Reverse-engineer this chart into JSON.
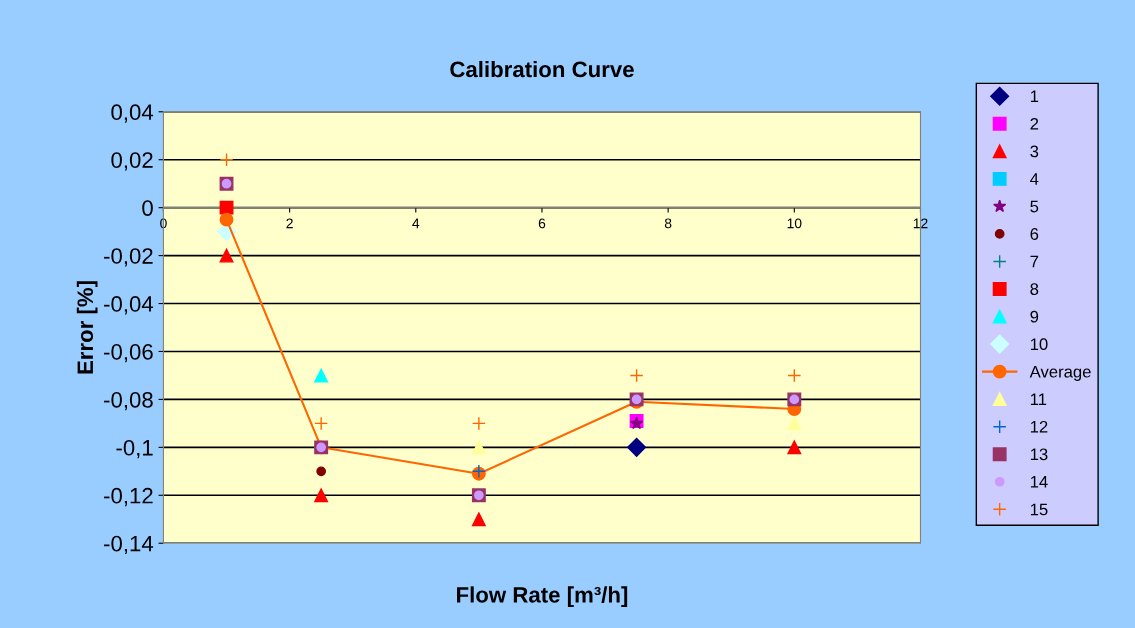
{
  "chart_data": {
    "type": "scatter",
    "title": "Calibration Curve",
    "xlabel": "Flow Rate [m³/h]",
    "ylabel": "Error [%]",
    "xlim": [
      0,
      12
    ],
    "xticks": [
      0,
      2,
      4,
      6,
      8,
      10,
      12
    ],
    "ylim": [
      -0.14,
      0.04
    ],
    "yticks": [
      {
        "value": -0.14,
        "label": "-0,14"
      },
      {
        "value": -0.12,
        "label": "-0,12"
      },
      {
        "value": -0.1,
        "label": "-0,1"
      },
      {
        "value": -0.08,
        "label": "-0,08"
      },
      {
        "value": -0.06,
        "label": "-0,06"
      },
      {
        "value": -0.04,
        "label": "-0,04"
      },
      {
        "value": -0.02,
        "label": "-0,02"
      },
      {
        "value": 0,
        "label": "0"
      },
      {
        "value": 0.02,
        "label": "0,02"
      },
      {
        "value": 0.04,
        "label": "0,04"
      }
    ],
    "grid": "y",
    "legend": "right",
    "x": [
      1,
      2.5,
      5,
      7.5,
      10
    ],
    "series": [
      {
        "name": "1",
        "color": "#000080",
        "marker": "diamond",
        "values": [
          null,
          null,
          null,
          -0.1,
          null
        ]
      },
      {
        "name": "2",
        "color": "#ff00ff",
        "marker": "square",
        "values": [
          null,
          null,
          null,
          -0.089,
          null
        ]
      },
      {
        "name": "3",
        "color": "#ff0000",
        "marker": "triangle",
        "values": [
          -0.02,
          -0.12,
          -0.13,
          null,
          -0.1
        ]
      },
      {
        "name": "4",
        "color": "#00ccff",
        "marker": "square",
        "values": [
          null,
          null,
          null,
          null,
          null
        ]
      },
      {
        "name": "5",
        "color": "#800080",
        "marker": "star",
        "values": [
          null,
          null,
          null,
          -0.09,
          null
        ]
      },
      {
        "name": "6",
        "color": "#800000",
        "marker": "circle",
        "values": [
          null,
          -0.11,
          null,
          null,
          null
        ]
      },
      {
        "name": "7",
        "color": "#008080",
        "marker": "cross",
        "values": [
          null,
          null,
          null,
          null,
          null
        ]
      },
      {
        "name": "8",
        "color": "#ff0000",
        "marker": "square",
        "values": [
          0,
          null,
          null,
          null,
          null
        ]
      },
      {
        "name": "9",
        "color": "#00ffff",
        "marker": "triangle",
        "values": [
          null,
          -0.07,
          null,
          null,
          null
        ]
      },
      {
        "name": "10",
        "color": "#ccffff",
        "marker": "diamond",
        "values": [
          -0.01,
          null,
          null,
          null,
          null
        ]
      },
      {
        "name": "Average",
        "type": "line",
        "color": "#ff6600",
        "marker": "circle",
        "values": [
          -0.005,
          -0.1,
          -0.111,
          -0.081,
          -0.084
        ]
      },
      {
        "name": "11",
        "color": "#ffff99",
        "marker": "triangle",
        "values": [
          null,
          null,
          -0.1,
          null,
          -0.09
        ]
      },
      {
        "name": "12",
        "color": "#0066cc",
        "marker": "cross",
        "values": [
          null,
          null,
          -0.11,
          null,
          null
        ]
      },
      {
        "name": "13",
        "color": "#993366",
        "marker": "square",
        "values": [
          0.01,
          -0.1,
          -0.12,
          -0.08,
          -0.08
        ]
      },
      {
        "name": "14",
        "color": "#cc99ff",
        "marker": "circle",
        "values": [
          0.01,
          -0.1,
          -0.12,
          -0.08,
          -0.08
        ]
      },
      {
        "name": "15",
        "color": "#ff6600",
        "marker": "cross",
        "values": [
          0.02,
          -0.09,
          -0.09,
          -0.07,
          -0.07
        ]
      }
    ]
  }
}
